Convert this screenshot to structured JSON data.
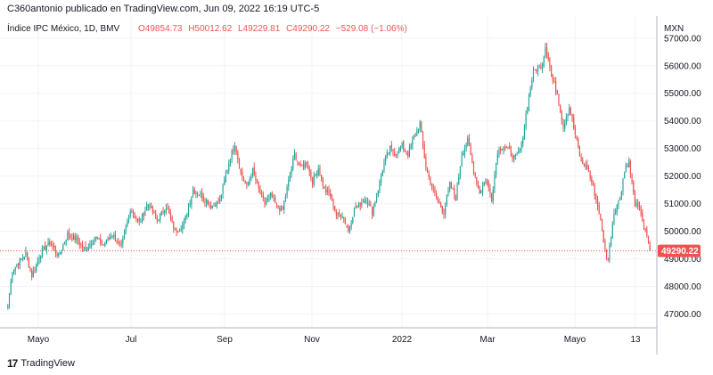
{
  "header": {
    "attribution": "C360antonio publicado en TradingView.com, Jun 09, 2022 16:19 UTC-5"
  },
  "footer": {
    "brand_mark": "17",
    "brand": "TradingView"
  },
  "chart_data": {
    "type": "candlestick",
    "title": "Índice IPC México, 1D, BMV",
    "ohlc_legend": {
      "open": "O49854.73",
      "high": "H50012.62",
      "low": "L49229.81",
      "close": "C49290.22",
      "change": "−529.08 (−1.06%)"
    },
    "currency": "MXN",
    "last_price": "49290.22",
    "ylim": [
      46500,
      57800
    ],
    "y_ticks": [
      "57000.00",
      "56000.00",
      "55000.00",
      "54000.00",
      "53000.00",
      "52000.00",
      "51000.00",
      "50000.00",
      "49000.00",
      "48000.00",
      "47000.00"
    ],
    "x_ticks": [
      "Mayo",
      "Jul",
      "Sep",
      "Nov",
      "2022",
      "Mar",
      "Mayo",
      "13"
    ],
    "colors": {
      "up": "#26a69a",
      "down": "#ef5350",
      "grid": "#f0f3fa",
      "axis_text": "#131722",
      "last_price": "#ef5350"
    },
    "close_anchors": [
      [
        0,
        47300
      ],
      [
        3,
        48600
      ],
      [
        8,
        48900
      ],
      [
        12,
        49200
      ],
      [
        16,
        48400
      ],
      [
        22,
        49200
      ],
      [
        28,
        49600
      ],
      [
        34,
        49100
      ],
      [
        40,
        49900
      ],
      [
        46,
        49700
      ],
      [
        52,
        49300
      ],
      [
        58,
        49800
      ],
      [
        64,
        49500
      ],
      [
        70,
        49900
      ],
      [
        76,
        49400
      ],
      [
        82,
        50800
      ],
      [
        88,
        50300
      ],
      [
        94,
        51000
      ],
      [
        100,
        50400
      ],
      [
        106,
        50900
      ],
      [
        112,
        50000
      ],
      [
        118,
        50300
      ],
      [
        124,
        51500
      ],
      [
        130,
        51300
      ],
      [
        136,
        50900
      ],
      [
        142,
        51100
      ],
      [
        148,
        52500
      ],
      [
        152,
        53200
      ],
      [
        156,
        52100
      ],
      [
        160,
        51600
      ],
      [
        164,
        52200
      ],
      [
        168,
        51500
      ],
      [
        172,
        51000
      ],
      [
        176,
        51300
      ],
      [
        180,
        50900
      ],
      [
        184,
        50800
      ],
      [
        188,
        51800
      ],
      [
        192,
        52800
      ],
      [
        196,
        52300
      ],
      [
        200,
        52500
      ],
      [
        204,
        51800
      ],
      [
        208,
        52300
      ],
      [
        212,
        51500
      ],
      [
        216,
        51300
      ],
      [
        220,
        50600
      ],
      [
        224,
        50600
      ],
      [
        228,
        50000
      ],
      [
        232,
        50800
      ],
      [
        236,
        51000
      ],
      [
        240,
        51200
      ],
      [
        244,
        50700
      ],
      [
        248,
        51500
      ],
      [
        252,
        52500
      ],
      [
        256,
        53000
      ],
      [
        260,
        52800
      ],
      [
        264,
        53100
      ],
      [
        268,
        52800
      ],
      [
        272,
        53400
      ],
      [
        276,
        53900
      ],
      [
        280,
        52300
      ],
      [
        284,
        51600
      ],
      [
        288,
        51100
      ],
      [
        292,
        50700
      ],
      [
        296,
        51700
      ],
      [
        300,
        51200
      ],
      [
        304,
        52800
      ],
      [
        308,
        53300
      ],
      [
        312,
        52200
      ],
      [
        316,
        51400
      ],
      [
        320,
        51900
      ],
      [
        324,
        51200
      ],
      [
        328,
        52900
      ],
      [
        332,
        53100
      ],
      [
        336,
        52900
      ],
      [
        340,
        52600
      ],
      [
        344,
        53100
      ],
      [
        348,
        54600
      ],
      [
        352,
        55800
      ],
      [
        356,
        55900
      ],
      [
        358,
        56100
      ],
      [
        360,
        56700
      ],
      [
        362,
        56300
      ],
      [
        364,
        55600
      ],
      [
        368,
        55000
      ],
      [
        372,
        53800
      ],
      [
        376,
        54500
      ],
      [
        380,
        53500
      ],
      [
        384,
        52500
      ],
      [
        388,
        52300
      ],
      [
        392,
        51600
      ],
      [
        396,
        50700
      ],
      [
        400,
        49300
      ],
      [
        402,
        49000
      ],
      [
        406,
        50700
      ],
      [
        410,
        51200
      ],
      [
        412,
        51900
      ],
      [
        414,
        52400
      ],
      [
        416,
        52500
      ],
      [
        418,
        51700
      ],
      [
        420,
        51000
      ],
      [
        424,
        50700
      ],
      [
        426,
        50100
      ],
      [
        428,
        49800
      ],
      [
        430,
        49290.22
      ]
    ]
  }
}
